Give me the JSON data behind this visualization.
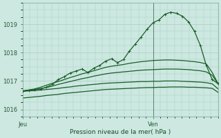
{
  "xlabel": "Pression niveau de la mer( hPa )",
  "background_color": "#cce8e0",
  "grid_color": "#aaccc4",
  "line_color": "#1a5c28",
  "flat_line_color": "#1a5c28",
  "ylim": [
    1015.75,
    1019.75
  ],
  "y_ticks": [
    1016,
    1017,
    1018,
    1019
  ],
  "xlim": [
    0,
    27
  ],
  "x_tick_positions": [
    0,
    18
  ],
  "x_tick_labels": [
    "Jeu",
    "Ven"
  ],
  "vline_x": 18,
  "series_main": [
    1016.65,
    1016.68,
    1016.7,
    1016.72,
    1016.78,
    1016.88,
    1017.05,
    1017.15,
    1017.28,
    1017.35,
    1017.42,
    1017.3,
    1017.45,
    1017.55,
    1017.7,
    1017.78,
    1017.65,
    1017.75,
    1018.05,
    1018.3,
    1018.55,
    1018.82,
    1019.05,
    1019.15,
    1019.35,
    1019.42,
    1019.38,
    1019.28,
    1019.08,
    1018.75,
    1018.25,
    1017.55,
    1017.05,
    1016.9
  ],
  "series_line1": [
    1016.65,
    1016.68,
    1016.72,
    1016.78,
    1016.85,
    1016.92,
    1016.98,
    1017.05,
    1017.12,
    1017.18,
    1017.25,
    1017.3,
    1017.36,
    1017.42,
    1017.48,
    1017.52,
    1017.55,
    1017.58,
    1017.62,
    1017.65,
    1017.68,
    1017.7,
    1017.72,
    1017.73,
    1017.74,
    1017.74,
    1017.73,
    1017.72,
    1017.7,
    1017.68,
    1017.65,
    1017.6,
    1017.3,
    1016.9
  ],
  "series_line2": [
    1016.65,
    1016.67,
    1016.7,
    1016.73,
    1016.77,
    1016.82,
    1016.88,
    1016.93,
    1016.98,
    1017.03,
    1017.08,
    1017.12,
    1017.17,
    1017.21,
    1017.25,
    1017.28,
    1017.3,
    1017.32,
    1017.34,
    1017.36,
    1017.38,
    1017.39,
    1017.4,
    1017.41,
    1017.42,
    1017.42,
    1017.42,
    1017.41,
    1017.4,
    1017.38,
    1017.36,
    1017.32,
    1017.2,
    1016.9
  ],
  "series_line3": [
    1016.63,
    1016.65,
    1016.66,
    1016.68,
    1016.7,
    1016.72,
    1016.74,
    1016.77,
    1016.79,
    1016.82,
    1016.84,
    1016.86,
    1016.88,
    1016.9,
    1016.92,
    1016.93,
    1016.94,
    1016.95,
    1016.96,
    1016.97,
    1016.98,
    1016.98,
    1016.99,
    1016.99,
    1017.0,
    1017.0,
    1017.0,
    1016.99,
    1016.98,
    1016.97,
    1016.96,
    1016.94,
    1016.9,
    1016.72
  ],
  "series_line4": [
    1016.4,
    1016.42,
    1016.44,
    1016.46,
    1016.49,
    1016.51,
    1016.53,
    1016.56,
    1016.58,
    1016.6,
    1016.62,
    1016.64,
    1016.66,
    1016.68,
    1016.7,
    1016.71,
    1016.72,
    1016.73,
    1016.74,
    1016.75,
    1016.76,
    1016.77,
    1016.77,
    1016.78,
    1016.78,
    1016.79,
    1016.79,
    1016.79,
    1016.78,
    1016.78,
    1016.77,
    1016.76,
    1016.74,
    1016.6
  ]
}
